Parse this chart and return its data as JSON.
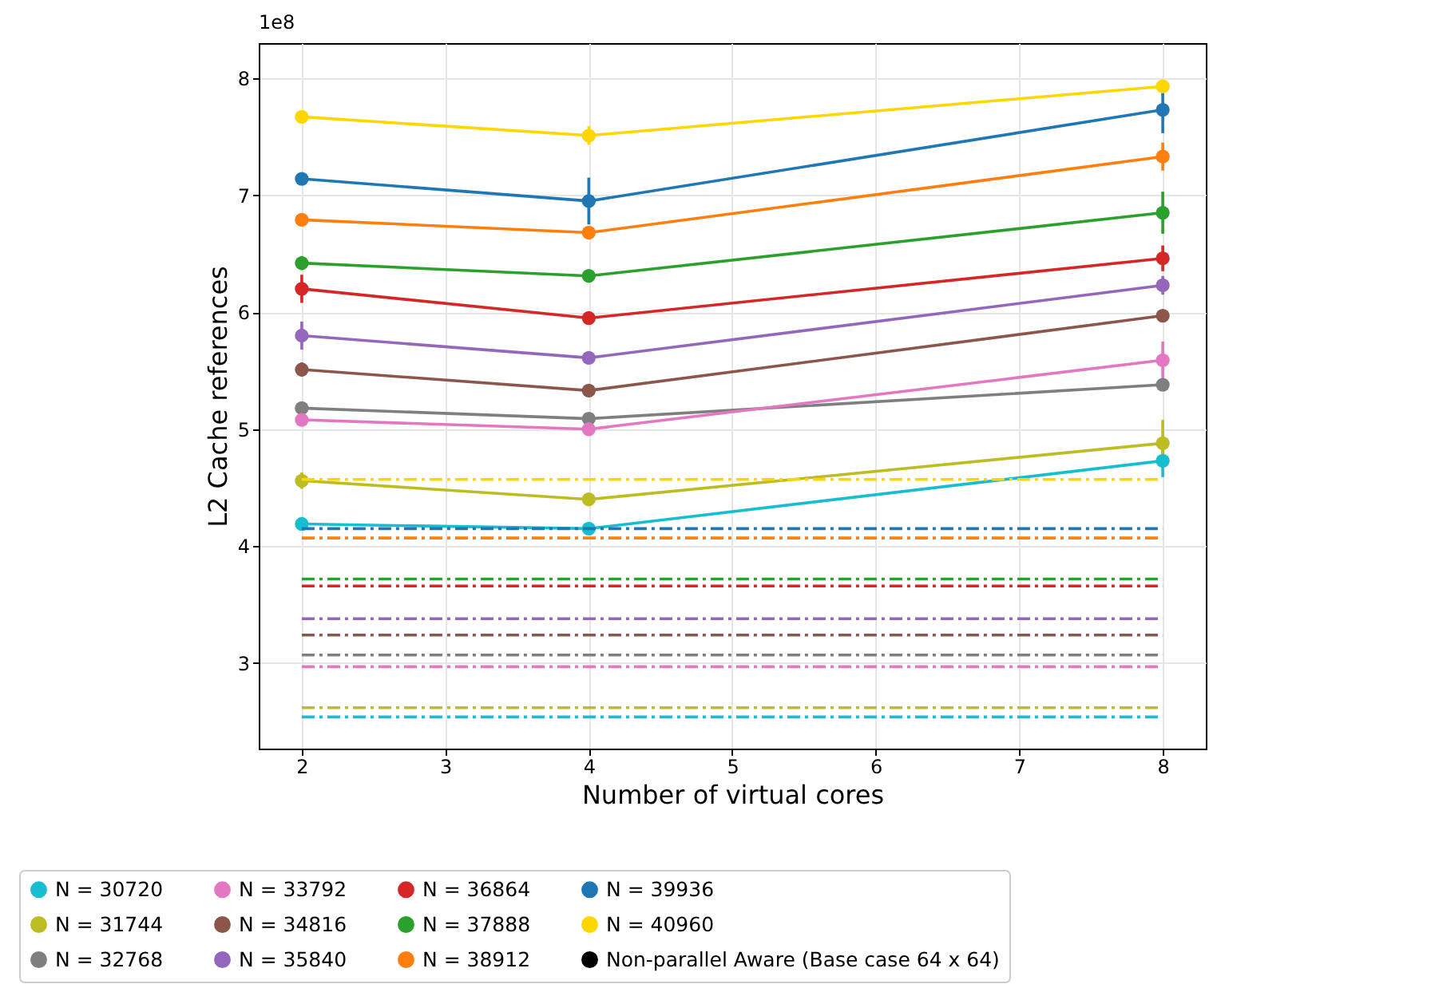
{
  "chart_data": {
    "type": "line",
    "xlabel": "Number of virtual cores",
    "ylabel": "L2 Cache references",
    "annotations": [
      "1e8"
    ],
    "x": [
      2,
      4,
      8
    ],
    "xlim": [
      1.7,
      8.3
    ],
    "xticks": [
      2,
      3,
      4,
      5,
      6,
      7,
      8
    ],
    "ylim": [
      2.27,
      8.3
    ],
    "yticks": [
      3,
      4,
      5,
      6,
      7,
      8
    ],
    "grid": true,
    "legend": "bottom",
    "marker": "circle",
    "series": [
      {
        "name": "N = 30720",
        "color": "#17becf",
        "values": [
          4.19,
          4.15,
          4.73
        ],
        "errors": [
          0.03,
          0.03,
          0.14
        ]
      },
      {
        "name": "N = 31744",
        "color": "#bcbd22",
        "values": [
          4.56,
          4.4,
          4.88
        ],
        "errors": [
          0.07,
          0.03,
          0.2
        ]
      },
      {
        "name": "N = 32768",
        "color": "#7f7f7f",
        "values": [
          5.18,
          5.09,
          5.38
        ],
        "errors": [
          0.03,
          0.03,
          0.05
        ]
      },
      {
        "name": "N = 33792",
        "color": "#e377c2",
        "values": [
          5.08,
          5.0,
          5.59
        ],
        "errors": [
          0.03,
          0.04,
          0.16
        ]
      },
      {
        "name": "N = 34816",
        "color": "#8c564b",
        "values": [
          5.51,
          5.33,
          5.97
        ],
        "errors": [
          0.06,
          0.03,
          0.05
        ]
      },
      {
        "name": "N = 35840",
        "color": "#9467bd",
        "values": [
          5.8,
          5.61,
          6.23
        ],
        "errors": [
          0.12,
          0.03,
          0.08
        ]
      },
      {
        "name": "N = 36864",
        "color": "#d62728",
        "values": [
          6.2,
          5.95,
          6.46
        ],
        "errors": [
          0.12,
          0.03,
          0.11
        ]
      },
      {
        "name": "N = 37888",
        "color": "#2ca02c",
        "values": [
          6.42,
          6.31,
          6.85
        ],
        "errors": [
          0.06,
          0.03,
          0.18
        ]
      },
      {
        "name": "N = 38912",
        "color": "#ff7f0e",
        "values": [
          6.79,
          6.68,
          7.33
        ],
        "errors": [
          0.05,
          0.03,
          0.12
        ]
      },
      {
        "name": "N = 39936",
        "color": "#1f77b4",
        "values": [
          7.14,
          6.95,
          7.73
        ],
        "errors": [
          0.05,
          0.2,
          0.2
        ]
      },
      {
        "name": "N = 40960",
        "color": "#ffd700",
        "values": [
          7.67,
          7.51,
          7.93
        ],
        "errors": [
          0.05,
          0.08,
          0.03
        ]
      },
      {
        "name": "Non-parallel Aware (Base case 64 x 64)",
        "color": "#000000",
        "line_style": "dashed",
        "marker": "none",
        "values": [
          null,
          null,
          null
        ]
      },
      {
        "color": "#17becf",
        "line_style": "dashed",
        "marker": "none",
        "values": [
          2.54,
          2.54,
          2.54
        ]
      },
      {
        "color": "#bcbd22",
        "line_style": "dashed",
        "marker": "none",
        "values": [
          2.62,
          2.62,
          2.62
        ]
      },
      {
        "color": "#7f7f7f",
        "line_style": "dashed",
        "marker": "none",
        "values": [
          3.07,
          3.07,
          3.07
        ]
      },
      {
        "color": "#e377c2",
        "line_style": "dashed",
        "marker": "none",
        "values": [
          2.97,
          2.97,
          2.97
        ]
      },
      {
        "color": "#8c564b",
        "line_style": "dashed",
        "marker": "none",
        "values": [
          3.24,
          3.24,
          3.24
        ]
      },
      {
        "color": "#9467bd",
        "line_style": "dashed",
        "marker": "none",
        "values": [
          3.38,
          3.38,
          3.38
        ]
      },
      {
        "color": "#d62728",
        "line_style": "dashed",
        "marker": "none",
        "values": [
          3.66,
          3.66,
          3.66
        ]
      },
      {
        "color": "#2ca02c",
        "line_style": "dashed",
        "marker": "none",
        "values": [
          3.72,
          3.72,
          3.72
        ]
      },
      {
        "color": "#ff7f0e",
        "line_style": "dashed",
        "marker": "none",
        "values": [
          4.07,
          4.07,
          4.07
        ]
      },
      {
        "color": "#1f77b4",
        "line_style": "dashed",
        "marker": "none",
        "values": [
          4.15,
          4.15,
          4.15
        ]
      },
      {
        "color": "#ffd700",
        "line_style": "dashed",
        "marker": "none",
        "values": [
          4.57,
          4.57,
          4.57
        ]
      }
    ]
  }
}
